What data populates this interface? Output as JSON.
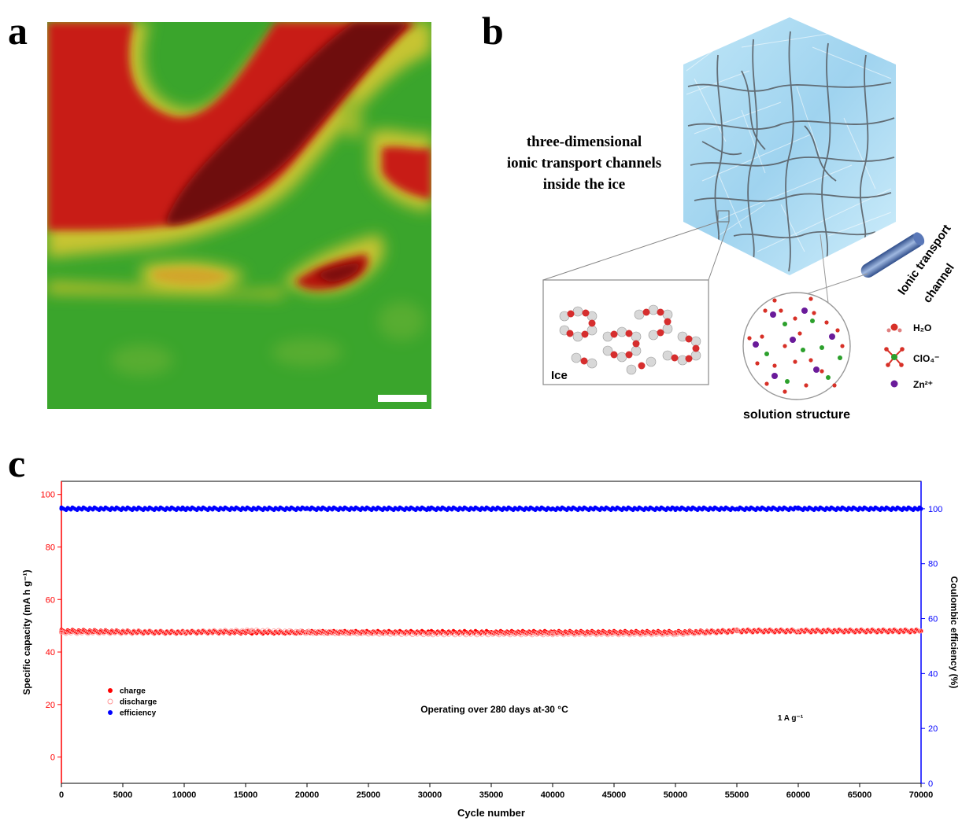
{
  "panels": {
    "a": {
      "letter": "a"
    },
    "b": {
      "letter": "b",
      "title_lines": [
        "three-dimensional",
        "ionic transport channels",
        "inside the ice"
      ],
      "channel_label_lines": [
        "Ionic transport",
        "channel"
      ],
      "ice_label": "Ice",
      "solution_label": "solution structure",
      "legend": [
        {
          "label": "H₂O",
          "icon": "water-molecule-icon",
          "color": "#d73027"
        },
        {
          "label": "ClO₄⁻",
          "icon": "perchlorate-ion-icon",
          "color": "#2ca02c"
        },
        {
          "label": "Zn²⁺",
          "icon": "zinc-ion-icon",
          "color": "#6a1b9a"
        }
      ]
    },
    "c": {
      "letter": "c"
    }
  },
  "chart_data": {
    "type": "scatter",
    "xlabel": "Cycle number",
    "ylabel": "Specific capacity (mA h g⁻¹)",
    "y2label": "Coulombic efficiency (%)",
    "xlim": [
      0,
      70000
    ],
    "ylim": [
      -10,
      105
    ],
    "y2lim": [
      0,
      110
    ],
    "x_ticks": [
      0,
      5000,
      10000,
      15000,
      20000,
      25000,
      30000,
      35000,
      40000,
      45000,
      50000,
      55000,
      60000,
      65000,
      70000
    ],
    "y_ticks": [
      0,
      20,
      40,
      60,
      80,
      100
    ],
    "y2_ticks": [
      0,
      20,
      40,
      60,
      80,
      100
    ],
    "legend_position": "lower-left",
    "annotations": [
      "Operating over 280 days at-30 °C",
      "1 A g⁻¹"
    ],
    "series": [
      {
        "name": "charge",
        "axis": "left",
        "color": "#ff0000",
        "marker": "filled-circle",
        "x": [
          0,
          10000,
          20000,
          30000,
          35000,
          40000,
          50000,
          55000,
          60000,
          70000
        ],
        "values": [
          48,
          47.5,
          47.5,
          47.5,
          47.5,
          47.5,
          47.5,
          48,
          48,
          48
        ]
      },
      {
        "name": "discharge",
        "axis": "left",
        "color": "#ff9999",
        "marker": "open-circle",
        "x": [
          0,
          10000,
          15500,
          20000,
          30000,
          40000,
          50000,
          55000,
          60000,
          70000
        ],
        "values": [
          47.5,
          47.5,
          48,
          47.5,
          47,
          47,
          47,
          48,
          48,
          48
        ]
      },
      {
        "name": "efficiency",
        "axis": "right",
        "color": "#0000ff",
        "marker": "filled-circle",
        "x": [
          0,
          10000,
          20000,
          30000,
          40000,
          50000,
          55000,
          60000,
          70000
        ],
        "values": [
          100,
          100,
          100,
          100,
          100,
          100,
          100,
          100,
          100
        ]
      }
    ]
  }
}
